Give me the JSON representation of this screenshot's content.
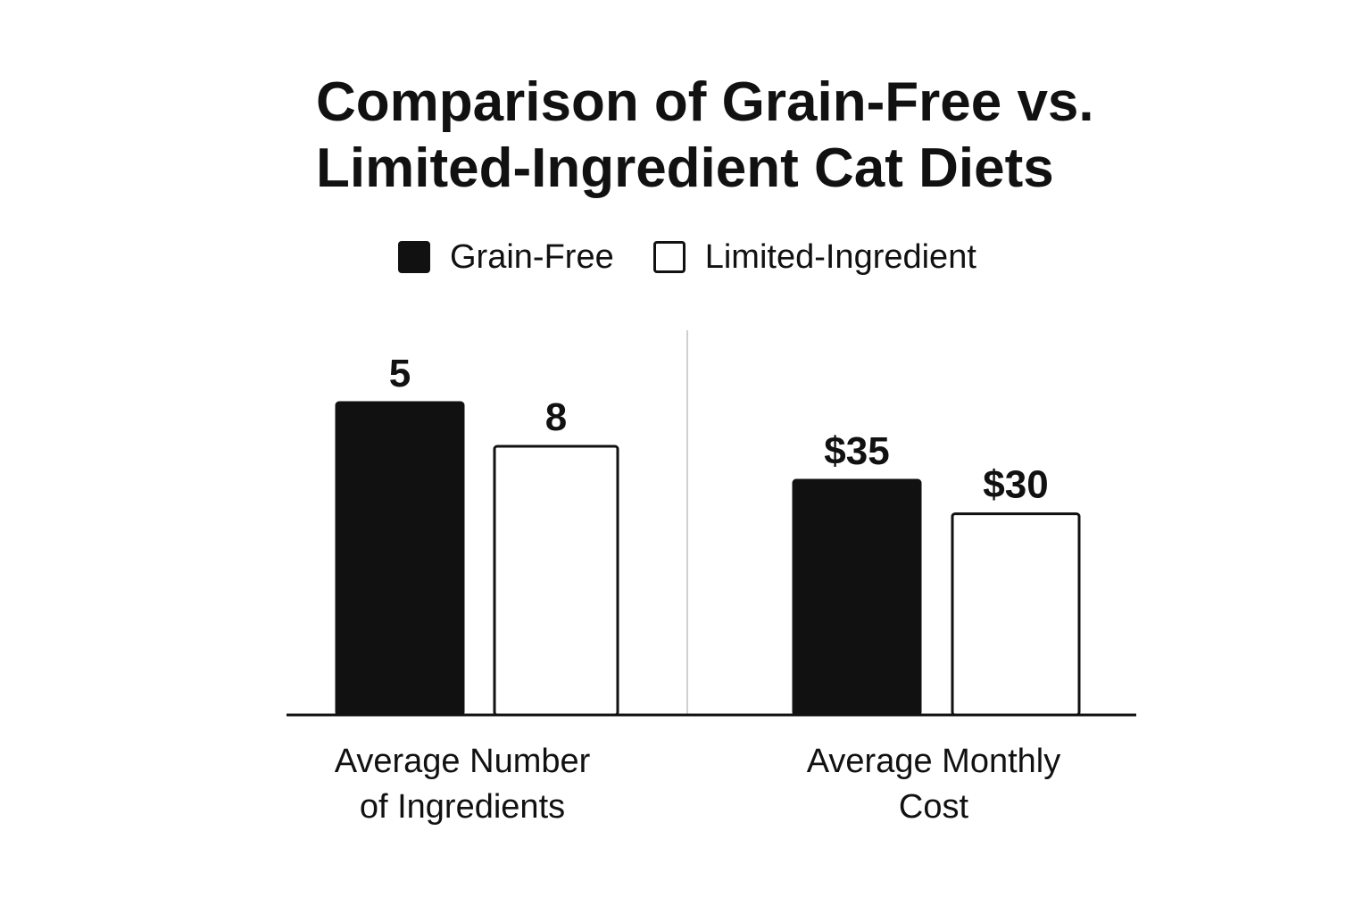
{
  "chart_data": {
    "type": "bar",
    "title_lines": [
      "Comparison of Grain-Free vs.",
      "Limited-Ingredient Cat Diets"
    ],
    "categories": [
      [
        "Average Number",
        "of Ingredients"
      ],
      [
        "Average Monthly",
        "Cost"
      ]
    ],
    "series": [
      {
        "name": "Grain-Free",
        "values": [
          5,
          35
        ],
        "labels": [
          "5",
          "$35"
        ],
        "color": "#111111"
      },
      {
        "name": "Limited-Ingredient",
        "values": [
          8,
          30
        ],
        "labels": [
          "8",
          "$30"
        ],
        "color": "#ffffff"
      }
    ],
    "grid": false,
    "legend_position": "top",
    "divider_between_groups": true
  }
}
